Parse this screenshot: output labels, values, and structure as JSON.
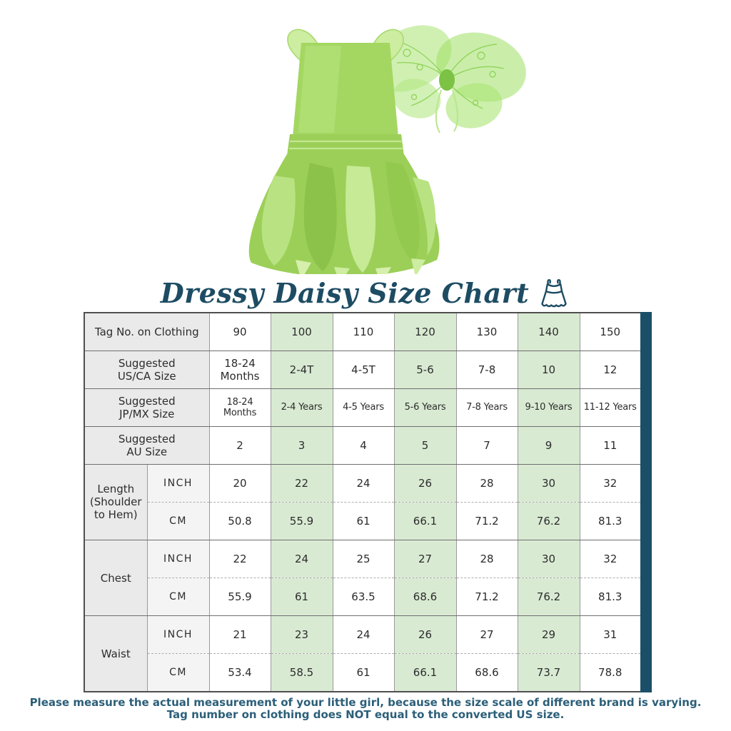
{
  "title": {
    "text": "Dressy Daisy Size Chart",
    "icon": "dress-icon"
  },
  "product_image": {
    "items": [
      "fairy-petal-dress",
      "butterfly-wings"
    ],
    "dress_color": "#a3d761",
    "wings_color": "#9fe065"
  },
  "colors": {
    "title_teal": "#1d4c63",
    "side_bar_teal": "#1b4f68",
    "footer_teal": "#2b5f79",
    "highlight_green": "#d9ead3",
    "label_gray": "#eaeaea",
    "unit_gray": "#f4f4f4"
  },
  "chart_data": {
    "type": "table",
    "title": "Dressy Daisy Size Chart",
    "highlighted_column_indexes": [
      1,
      3,
      5
    ],
    "highlighted_columns": [
      "100",
      "120",
      "140"
    ],
    "header_rows": [
      {
        "label": "Tag No. on Clothing",
        "values": [
          "90",
          "100",
          "110",
          "120",
          "130",
          "140",
          "150"
        ],
        "bold_index": 5
      },
      {
        "label": "Suggested\nUS/CA Size",
        "values": [
          "18-24\nMonths",
          "2-4T",
          "4-5T",
          "5-6",
          "7-8",
          "10",
          "12"
        ],
        "bold_index": null
      },
      {
        "label": "Suggested\nJP/MX Size",
        "values": [
          "18-24\nMonths",
          "2-4 Years",
          "4-5 Years",
          "5-6 Years",
          "7-8 Years",
          "9-10 Years",
          "11-12 Years"
        ],
        "bold_index": 5
      },
      {
        "label": "Suggested\nAU Size",
        "values": [
          "2",
          "3",
          "4",
          "5",
          "7",
          "9",
          "11"
        ],
        "bold_index": null
      }
    ],
    "measurement_rows": [
      {
        "label": "Length\n(Shoulder\nto Hem)",
        "unit_inch": "INCH",
        "unit_cm": "CM",
        "inch_values": [
          "20",
          "22",
          "24",
          "26",
          "28",
          "30",
          "32"
        ],
        "cm_values": [
          "50.8",
          "55.9",
          "61",
          "66.1",
          "71.2",
          "76.2",
          "81.3"
        ]
      },
      {
        "label": "Chest",
        "unit_inch": "INCH",
        "unit_cm": "CM",
        "inch_values": [
          "22",
          "24",
          "25",
          "27",
          "28",
          "30",
          "32"
        ],
        "cm_values": [
          "55.9",
          "61",
          "63.5",
          "68.6",
          "71.2",
          "76.2",
          "81.3"
        ]
      },
      {
        "label": "Waist",
        "unit_inch": "INCH",
        "unit_cm": "CM",
        "inch_values": [
          "21",
          "23",
          "24",
          "26",
          "27",
          "29",
          "31"
        ],
        "cm_values": [
          "53.4",
          "58.5",
          "61",
          "66.1",
          "68.6",
          "73.7",
          "78.8"
        ]
      }
    ]
  },
  "footer": {
    "line1": "Please measure the actual measurement of your little girl, because the size scale of different brand is varying.",
    "line2": "Tag number on clothing does NOT equal to the converted US size."
  }
}
